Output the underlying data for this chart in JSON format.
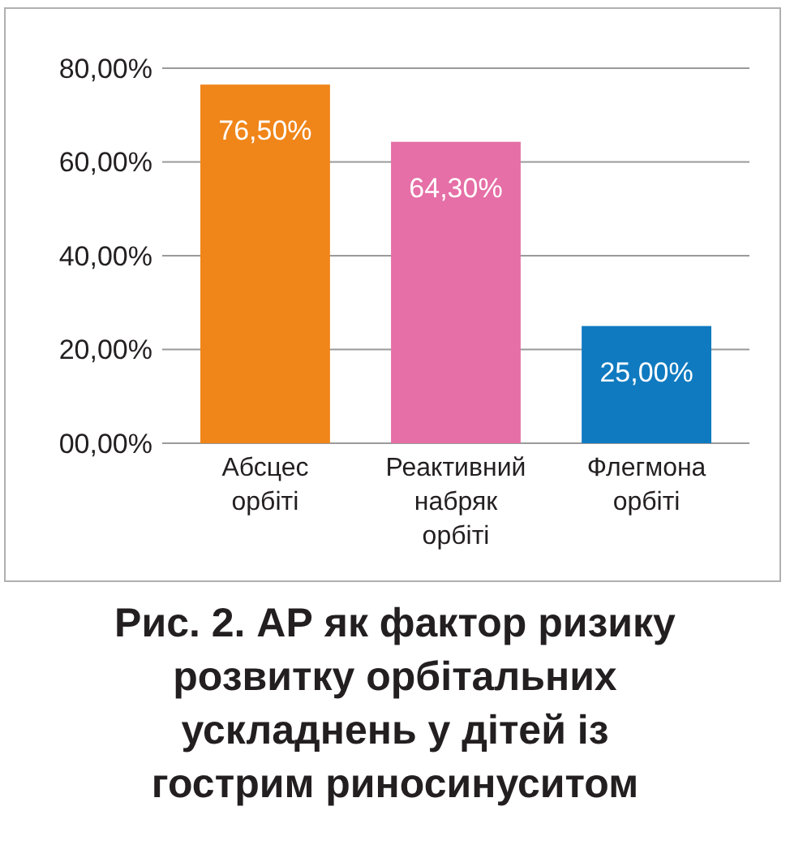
{
  "chart_data": {
    "type": "bar",
    "title": "Рис. 2. АР як фактор ризику розвитку орбітальних ускладнень у дітей із гострим риносинуситом",
    "categories": [
      "Абсцес орбіті",
      "Реактивний набряк орбіті",
      "Флегмона орбіті"
    ],
    "values": [
      76.5,
      64.3,
      25
    ],
    "colors": [
      "#f08519",
      "#e56fa6",
      "#0f7ac0"
    ],
    "value_labels": [
      "76,50%",
      "64,30%",
      "25,00%"
    ],
    "ylim": [
      0,
      80
    ],
    "yticks": [
      {
        "value": 0,
        "label": "00,00%"
      },
      {
        "value": 20,
        "label": "20,00%"
      },
      {
        "value": 40,
        "label": "40,00%"
      },
      {
        "value": 60,
        "label": "60,00%"
      },
      {
        "value": 80,
        "label": "80,00%"
      }
    ],
    "grid": "y"
  }
}
